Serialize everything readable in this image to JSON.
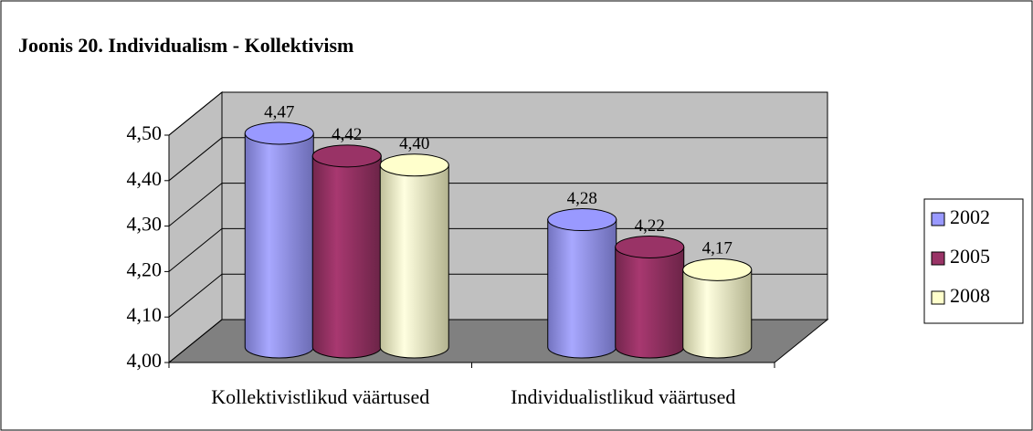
{
  "chart_data": {
    "type": "bar3d",
    "title": "Joonis 20. Individualism - Kollektivism",
    "categories": [
      "Kollektivistlikud väärtused",
      "Individualistlikud väärtused"
    ],
    "series": [
      {
        "name": "2002",
        "color": "#9999ff",
        "values": [
          4.47,
          4.28
        ],
        "value_labels": [
          "4,47",
          "4,28"
        ]
      },
      {
        "name": "2005",
        "color": "#993366",
        "values": [
          4.42,
          4.22
        ],
        "value_labels": [
          "4,42",
          "4,22"
        ]
      },
      {
        "name": "2008",
        "color": "#ffffcc",
        "values": [
          4.4,
          4.17
        ],
        "value_labels": [
          "4,40",
          "4,17"
        ]
      }
    ],
    "ylim": [
      4.0,
      4.5
    ],
    "yticks": [
      {
        "value": 4.0,
        "label": "4,00"
      },
      {
        "value": 4.1,
        "label": "4,10"
      },
      {
        "value": 4.2,
        "label": "4,20"
      },
      {
        "value": 4.3,
        "label": "4,30"
      },
      {
        "value": 4.4,
        "label": "4,40"
      },
      {
        "value": 4.5,
        "label": "4,50"
      }
    ],
    "grid": true,
    "legend": "right"
  }
}
